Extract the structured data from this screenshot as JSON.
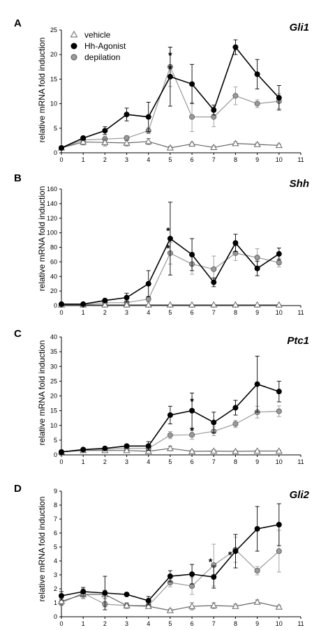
{
  "colors": {
    "vehicle": "#666666",
    "hh_agonist": "#000000",
    "depilation": "#999999",
    "vehicle_marker_fill": "#ffffff",
    "depilation_marker_fill": "#9a9a9a",
    "axis": "#000000"
  },
  "legend": {
    "entries": [
      "vehicle",
      "Hh-Agonist",
      "depilation"
    ],
    "placement": "top-left of panel A"
  },
  "chart_data": [
    {
      "panel_letter": "A",
      "type": "line",
      "title": "Gli1",
      "ylabel": "relative mRNA fold induction",
      "xlabel": "",
      "x_ticks": [
        "0",
        "1",
        "2",
        "3",
        "4",
        "5",
        "6",
        "7",
        "8",
        "9",
        "10",
        "11"
      ],
      "y_ticks": [
        "0",
        "5",
        "10",
        "15",
        "20",
        "25"
      ],
      "xlim": [
        0,
        11
      ],
      "ylim": [
        0,
        25
      ],
      "grid": false,
      "series": [
        {
          "name": "vehicle",
          "marker": "triangle",
          "x": [
            0,
            1,
            2,
            3,
            4,
            5,
            6,
            7,
            8,
            9,
            10
          ],
          "values": [
            1,
            2.2,
            2.1,
            2.0,
            2.3,
            1.0,
            1.8,
            1.1,
            1.9,
            1.7,
            1.5
          ],
          "errors": [
            0.2,
            0.6,
            0.7,
            0.6,
            0.6,
            0.3,
            0.3,
            0.3,
            0.3,
            0.3,
            0.3
          ]
        },
        {
          "name": "Hh-Agonist",
          "marker": "circle",
          "x": [
            0,
            1,
            2,
            3,
            4,
            5,
            6,
            7,
            8,
            9,
            10
          ],
          "values": [
            1,
            3.0,
            4.5,
            7.8,
            7.3,
            15.5,
            14.0,
            8.7,
            21.5,
            16.0,
            11.2
          ],
          "errors": [
            0.2,
            0.3,
            0.8,
            1.3,
            3.0,
            6.0,
            4.0,
            1.0,
            1.5,
            3.0,
            2.5
          ]
        },
        {
          "name": "depilation",
          "marker": "circle-gray",
          "x": [
            0,
            1,
            2,
            3,
            4,
            5,
            6,
            7,
            8,
            9,
            10
          ],
          "values": [
            1,
            2.6,
            2.8,
            3.0,
            4.5,
            17.5,
            7.3,
            7.3,
            11.6,
            10.0,
            10.5
          ],
          "errors": [
            0.2,
            0.4,
            0.5,
            0.5,
            0.6,
            4.0,
            3.0,
            2.0,
            1.8,
            0.8,
            1.5
          ]
        }
      ],
      "annotations": [
        {
          "text": "*",
          "x": 5,
          "y": 20
        },
        {
          "text": "*",
          "x": 5,
          "y": 17.3
        }
      ]
    },
    {
      "panel_letter": "B",
      "type": "line",
      "title": "Shh",
      "ylabel": "relative mRNA fold induction",
      "xlabel": "",
      "x_ticks": [
        "0",
        "1",
        "2",
        "3",
        "4",
        "5",
        "6",
        "7",
        "8",
        "9",
        "10",
        "11"
      ],
      "y_ticks": [
        "0",
        "20",
        "40",
        "60",
        "80",
        "100",
        "120",
        "140",
        "160"
      ],
      "xlim": [
        0,
        11
      ],
      "ylim": [
        0,
        160
      ],
      "grid": false,
      "series": [
        {
          "name": "vehicle",
          "marker": "triangle",
          "x": [
            0,
            1,
            2,
            3,
            4,
            5,
            6,
            7,
            8,
            9,
            10
          ],
          "values": [
            1,
            1,
            1,
            1,
            1,
            1,
            1,
            1,
            1,
            1,
            1
          ],
          "errors": [
            0.5,
            0.5,
            0.5,
            0.5,
            0.5,
            0.5,
            0.5,
            0.5,
            0.5,
            0.5,
            0.5
          ]
        },
        {
          "name": "Hh-Agonist",
          "marker": "circle",
          "x": [
            0,
            1,
            2,
            3,
            4,
            5,
            6,
            7,
            8,
            9,
            10
          ],
          "values": [
            2,
            2,
            7,
            11,
            30,
            92,
            70,
            32,
            86,
            51,
            71
          ],
          "errors": [
            1,
            1,
            2,
            6,
            18,
            50,
            22,
            6,
            12,
            10,
            8
          ]
        },
        {
          "name": "depilation",
          "marker": "circle-gray",
          "x": [
            0,
            1,
            2,
            3,
            4,
            5,
            6,
            7,
            8,
            9,
            10
          ],
          "values": [
            1,
            1,
            4,
            4,
            9,
            72,
            57,
            50,
            72,
            66,
            59
          ],
          "errors": [
            0.5,
            0.5,
            2,
            2,
            4,
            15,
            14,
            18,
            10,
            12,
            6
          ]
        }
      ],
      "annotations": [
        {
          "text": "*",
          "x": 4.9,
          "y": 104
        },
        {
          "text": "*",
          "x": 4.9,
          "y": 80
        }
      ]
    },
    {
      "panel_letter": "C",
      "type": "line",
      "title": "Ptc1",
      "ylabel": "relative mRNA fold induction",
      "xlabel": "",
      "x_ticks": [
        "0",
        "1",
        "2",
        "3",
        "4",
        "5",
        "6",
        "7",
        "8",
        "9",
        "10",
        "11"
      ],
      "y_ticks": [
        "0",
        "5",
        "10",
        "15",
        "20",
        "25",
        "30",
        "35",
        "40"
      ],
      "xlim": [
        0,
        11
      ],
      "ylim": [
        0,
        40
      ],
      "grid": false,
      "series": [
        {
          "name": "vehicle",
          "marker": "triangle",
          "x": [
            0,
            1,
            2,
            3,
            4,
            5,
            6,
            7,
            8,
            9,
            10
          ],
          "values": [
            1,
            1.5,
            1.5,
            1.5,
            1.2,
            2.2,
            1.2,
            1.3,
            1.2,
            1.3,
            1.3
          ],
          "errors": [
            0.3,
            0.4,
            0.4,
            0.5,
            0.4,
            0.8,
            0.4,
            0.4,
            0.3,
            0.3,
            0.3
          ]
        },
        {
          "name": "Hh-Agonist",
          "marker": "circle",
          "x": [
            0,
            1,
            2,
            3,
            4,
            5,
            6,
            7,
            8,
            9,
            10
          ],
          "values": [
            1,
            1.8,
            2.2,
            3.0,
            3.0,
            13.5,
            15.0,
            11.0,
            16.0,
            24.0,
            21.5
          ],
          "errors": [
            0.3,
            0.4,
            0.4,
            0.5,
            1.5,
            3.0,
            6.0,
            3.5,
            2.5,
            9.5,
            3.5
          ]
        },
        {
          "name": "depilation",
          "marker": "circle-gray",
          "x": [
            0,
            1,
            2,
            3,
            4,
            5,
            6,
            7,
            8,
            9,
            10
          ],
          "values": [
            1,
            1.8,
            1.9,
            2.2,
            2.2,
            6.7,
            6.8,
            8.0,
            10.5,
            14.5,
            14.8
          ],
          "errors": [
            0.3,
            0.4,
            0.4,
            0.4,
            0.5,
            1.2,
            1.5,
            1.5,
            1.2,
            2.0,
            1.8
          ]
        }
      ],
      "annotations": [
        {
          "text": "*",
          "x": 6,
          "y": 18.5
        },
        {
          "text": "*",
          "x": 6,
          "y": 8.5
        }
      ]
    },
    {
      "panel_letter": "D",
      "type": "line",
      "title": "Gli2",
      "ylabel": "relative mRNA fold induction",
      "xlabel": "",
      "x_ticks": [
        "0",
        "1",
        "2",
        "3",
        "4",
        "5",
        "6",
        "7",
        "8",
        "9",
        "10",
        "11"
      ],
      "y_ticks": [
        "0",
        "1",
        "2",
        "3",
        "4",
        "5",
        "6",
        "7",
        "8",
        "9"
      ],
      "xlim": [
        0,
        11
      ],
      "ylim": [
        0,
        9
      ],
      "grid": false,
      "series": [
        {
          "name": "vehicle",
          "marker": "triangle",
          "x": [
            0,
            1,
            2,
            3,
            4,
            5,
            6,
            7,
            8,
            9,
            10
          ],
          "values": [
            1.1,
            1.6,
            1.6,
            0.8,
            0.75,
            0.45,
            0.75,
            0.8,
            0.75,
            1.05,
            0.7
          ],
          "errors": [
            0.2,
            0.3,
            0.3,
            0.2,
            0.15,
            0.1,
            0.25,
            0.2,
            0.15,
            0.15,
            0.1
          ]
        },
        {
          "name": "Hh-Agonist",
          "marker": "circle",
          "x": [
            0,
            1,
            2,
            3,
            4,
            5,
            6,
            7,
            8,
            9,
            10
          ],
          "values": [
            1.5,
            1.8,
            1.7,
            1.6,
            1.15,
            2.9,
            3.05,
            2.85,
            4.7,
            6.3,
            6.6
          ],
          "errors": [
            0.3,
            0.3,
            1.2,
            0.1,
            0.3,
            0.4,
            0.7,
            0.8,
            1.2,
            1.6,
            1.5
          ]
        },
        {
          "name": "depilation",
          "marker": "circle-gray",
          "x": [
            0,
            1,
            2,
            3,
            4,
            5,
            6,
            7,
            8,
            9,
            10
          ],
          "values": [
            1.0,
            1.7,
            0.9,
            0.8,
            0.8,
            2.45,
            2.2,
            3.7,
            4.8,
            3.3,
            4.7
          ],
          "errors": [
            0.2,
            0.3,
            0.2,
            0.1,
            0.2,
            0.3,
            0.6,
            1.5,
            0.9,
            0.3,
            1.5
          ]
        }
      ],
      "annotations": [
        {
          "text": "*",
          "x": 6.85,
          "y": 4.0
        },
        {
          "text": "*",
          "x": 7.75,
          "y": 4.5
        }
      ]
    }
  ]
}
